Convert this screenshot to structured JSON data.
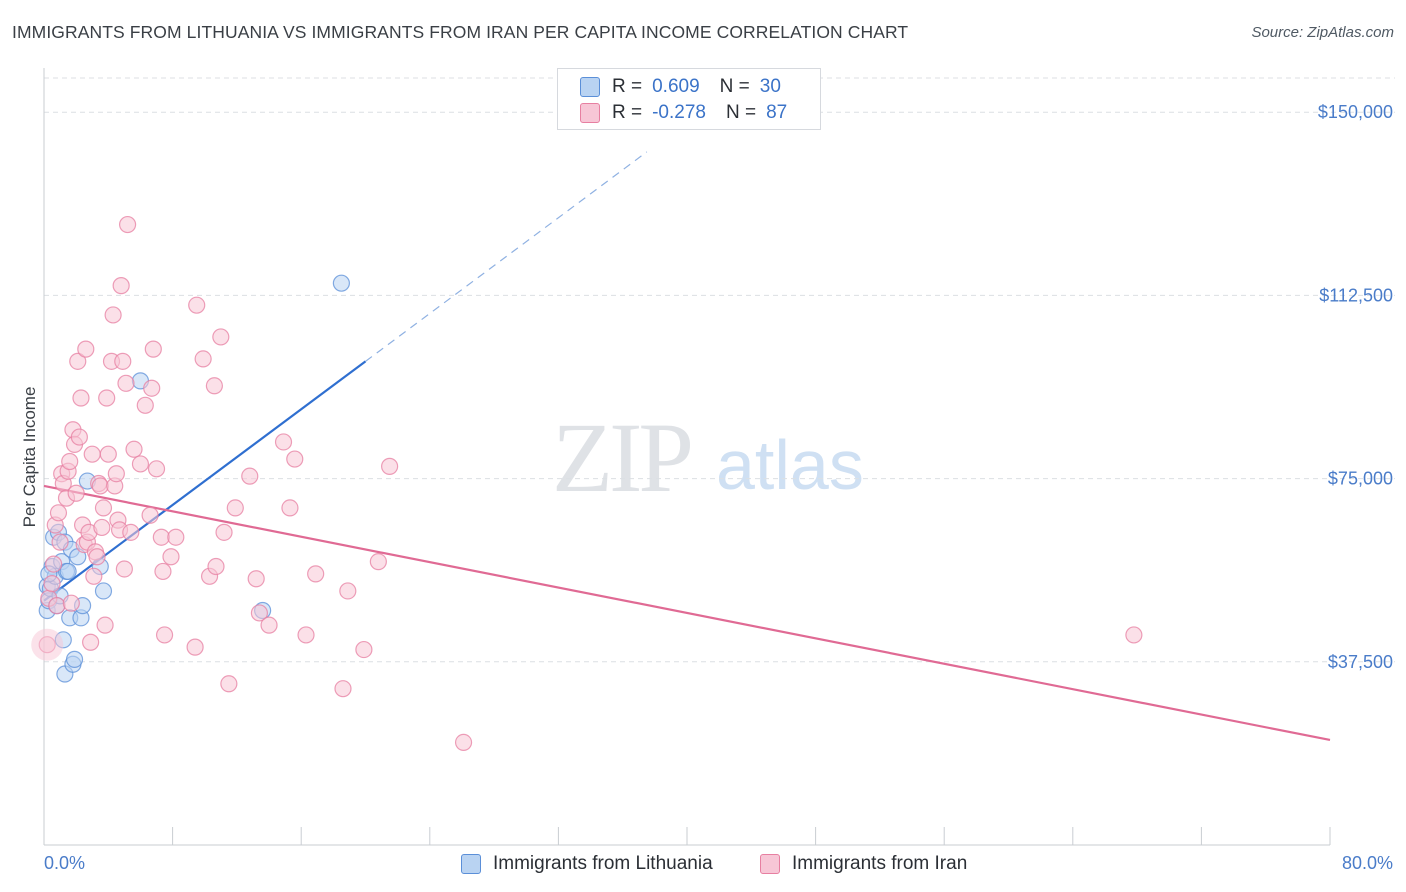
{
  "title": "IMMIGRANTS FROM LITHUANIA VS IMMIGRANTS FROM IRAN PER CAPITA INCOME CORRELATION CHART",
  "source": "Source: ZipAtlas.com",
  "watermark": {
    "zip": "ZIP",
    "atlas": "atlas"
  },
  "colors": {
    "blue_fill": "#b9d3f2",
    "blue_stroke": "#5b8fd8",
    "blue_line": "#2f6fd0",
    "pink_fill": "#f7c6d6",
    "pink_stroke": "#e77fa1",
    "pink_line": "#e06a94",
    "axis_text": "#4a7cc9",
    "grid": "#dcdfe3"
  },
  "legend": {
    "rows": [
      {
        "r_label": "R =",
        "r_value": "0.609",
        "n_label": "N =",
        "n_value": "30"
      },
      {
        "r_label": "R =",
        "r_value": "-0.278",
        "n_label": "N =",
        "n_value": "87"
      }
    ]
  },
  "chart_data": {
    "type": "scatter",
    "title": "IMMIGRANTS FROM LITHUANIA VS IMMIGRANTS FROM IRAN PER CAPITA INCOME CORRELATION CHART",
    "xlabel": "",
    "ylabel": "Per Capita Income",
    "xlim": [
      0,
      80
    ],
    "ylim": [
      0,
      157000
    ],
    "x_tick_labels": [
      "0.0%",
      "80.0%"
    ],
    "y_ticks": [
      37500,
      75000,
      112500,
      150000
    ],
    "y_tick_labels": [
      "$37,500",
      "$75,000",
      "$112,500",
      "$150,000"
    ],
    "grid": true,
    "series": [
      {
        "name": "Immigrants from Lithuania",
        "color": "blue",
        "points": [
          [
            0.2,
            48000
          ],
          [
            0.2,
            53000
          ],
          [
            0.3,
            50000
          ],
          [
            0.4,
            52500
          ],
          [
            0.5,
            57000
          ],
          [
            0.6,
            63000
          ],
          [
            0.7,
            55000
          ],
          [
            0.8,
            49000
          ],
          [
            0.9,
            64000
          ],
          [
            1.0,
            51000
          ],
          [
            1.1,
            58000
          ],
          [
            1.2,
            42000
          ],
          [
            1.3,
            62000
          ],
          [
            1.3,
            35000
          ],
          [
            1.4,
            56000
          ],
          [
            1.5,
            56000
          ],
          [
            1.6,
            46500
          ],
          [
            1.7,
            60500
          ],
          [
            1.8,
            37000
          ],
          [
            1.9,
            38000
          ],
          [
            2.1,
            59000
          ],
          [
            2.3,
            46500
          ],
          [
            2.4,
            49000
          ],
          [
            2.7,
            74500
          ],
          [
            3.5,
            57000
          ],
          [
            3.7,
            52000
          ],
          [
            6.0,
            95000
          ],
          [
            13.6,
            48000
          ],
          [
            18.5,
            115000
          ],
          [
            0.3,
            55500
          ]
        ],
        "trend": {
          "x0": 0,
          "y0": 50000,
          "x1": 20.0,
          "y1": 99000,
          "dashed_to_x": 37.5
        }
      },
      {
        "name": "Immigrants from Iran",
        "color": "pink",
        "points": [
          [
            0.2,
            41000
          ],
          [
            0.3,
            50500
          ],
          [
            0.5,
            53500
          ],
          [
            0.6,
            57500
          ],
          [
            0.7,
            65500
          ],
          [
            0.8,
            49000
          ],
          [
            0.9,
            68000
          ],
          [
            1.0,
            62000
          ],
          [
            1.1,
            76000
          ],
          [
            1.2,
            74000
          ],
          [
            1.4,
            71000
          ],
          [
            1.5,
            76500
          ],
          [
            1.6,
            78500
          ],
          [
            1.7,
            49500
          ],
          [
            1.8,
            85000
          ],
          [
            1.9,
            82000
          ],
          [
            2.0,
            72000
          ],
          [
            2.1,
            99000
          ],
          [
            2.2,
            83500
          ],
          [
            2.3,
            91500
          ],
          [
            2.4,
            65500
          ],
          [
            2.5,
            61500
          ],
          [
            2.6,
            101500
          ],
          [
            2.7,
            62000
          ],
          [
            2.8,
            64000
          ],
          [
            2.9,
            41500
          ],
          [
            3.0,
            80000
          ],
          [
            3.1,
            55000
          ],
          [
            3.2,
            60000
          ],
          [
            3.3,
            59000
          ],
          [
            3.4,
            74000
          ],
          [
            3.5,
            73500
          ],
          [
            3.6,
            65000
          ],
          [
            3.7,
            69000
          ],
          [
            3.8,
            45000
          ],
          [
            3.9,
            91500
          ],
          [
            4.0,
            80000
          ],
          [
            4.2,
            99000
          ],
          [
            4.3,
            108500
          ],
          [
            4.4,
            73500
          ],
          [
            4.5,
            76000
          ],
          [
            4.6,
            66500
          ],
          [
            4.7,
            64500
          ],
          [
            4.8,
            114500
          ],
          [
            4.9,
            99000
          ],
          [
            5.0,
            56500
          ],
          [
            5.1,
            94500
          ],
          [
            5.2,
            127000
          ],
          [
            5.4,
            64000
          ],
          [
            5.6,
            81000
          ],
          [
            6.0,
            78000
          ],
          [
            6.3,
            90000
          ],
          [
            6.6,
            67500
          ],
          [
            6.7,
            93500
          ],
          [
            6.8,
            101500
          ],
          [
            7.0,
            77000
          ],
          [
            7.3,
            63000
          ],
          [
            7.4,
            56000
          ],
          [
            7.5,
            43000
          ],
          [
            7.9,
            59000
          ],
          [
            8.2,
            63000
          ],
          [
            9.4,
            40500
          ],
          [
            9.5,
            110500
          ],
          [
            9.9,
            99500
          ],
          [
            10.3,
            55000
          ],
          [
            10.6,
            94000
          ],
          [
            10.7,
            57000
          ],
          [
            11.0,
            104000
          ],
          [
            11.2,
            64000
          ],
          [
            11.5,
            33000
          ],
          [
            11.9,
            69000
          ],
          [
            12.8,
            75500
          ],
          [
            13.2,
            54500
          ],
          [
            13.4,
            47500
          ],
          [
            14.0,
            45000
          ],
          [
            14.9,
            82500
          ],
          [
            15.3,
            69000
          ],
          [
            15.6,
            79000
          ],
          [
            16.3,
            43000
          ],
          [
            16.9,
            55500
          ],
          [
            18.6,
            32000
          ],
          [
            18.9,
            52000
          ],
          [
            19.9,
            40000
          ],
          [
            20.8,
            58000
          ],
          [
            21.5,
            77500
          ],
          [
            26.1,
            21000
          ],
          [
            67.8,
            43000
          ]
        ],
        "trend": {
          "x0": 0,
          "y0": 73500,
          "x1": 80.0,
          "y1": 21500
        }
      }
    ]
  }
}
